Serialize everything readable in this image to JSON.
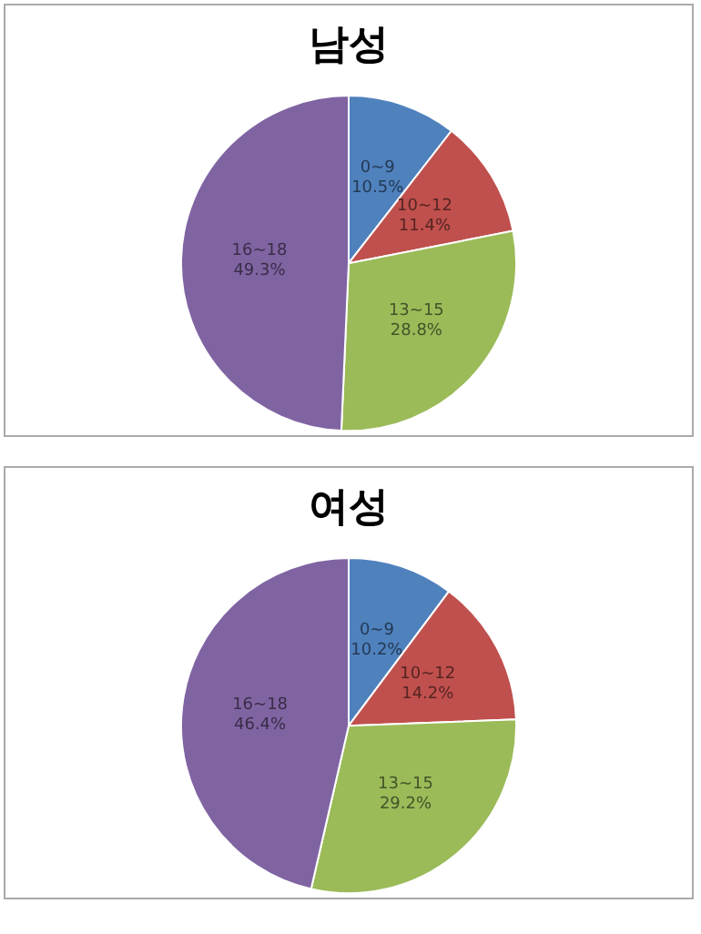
{
  "chart_data": [
    {
      "type": "pie",
      "title": "남성",
      "categories": [
        "0~9",
        "10~12",
        "13~15",
        "16~18"
      ],
      "values": [
        10.5,
        11.4,
        28.8,
        49.3
      ],
      "value_labels": [
        "10.5%",
        "11.4%",
        "28.8%",
        "49.3%"
      ],
      "colors": [
        "#4f81bd",
        "#c0504d",
        "#9bbb59",
        "#8064a2"
      ],
      "legend": false
    },
    {
      "type": "pie",
      "title": "여성",
      "categories": [
        "0~9",
        "10~12",
        "13~15",
        "16~18"
      ],
      "values": [
        10.2,
        14.2,
        29.2,
        46.4
      ],
      "value_labels": [
        "10.2%",
        "14.2%",
        "29.2%",
        "46.4%"
      ],
      "colors": [
        "#4f81bd",
        "#c0504d",
        "#9bbb59",
        "#8064a2"
      ],
      "legend": false
    }
  ]
}
